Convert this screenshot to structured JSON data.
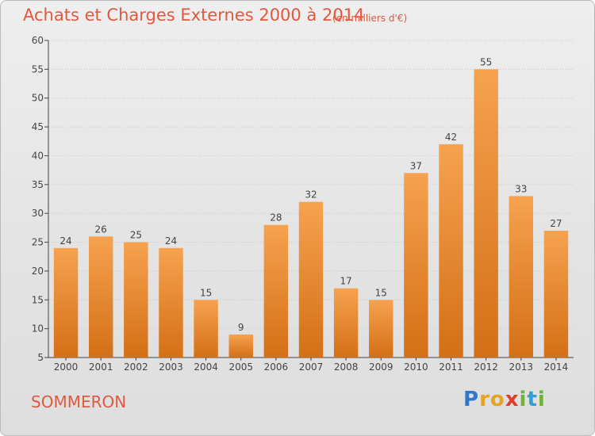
{
  "header": {
    "title": "Achats et Charges Externes 2000 à 2014",
    "subtitle": "(en milliers d'€)"
  },
  "footer": {
    "commune": "SOMMERON",
    "logo_letters": [
      "P",
      "r",
      "o",
      "x",
      "i",
      "t",
      "i"
    ]
  },
  "colors": {
    "title": "#e0593f",
    "bar_top": "#f6a24f",
    "bar_bottom": "#d46f16",
    "axis": "#444444",
    "grid": "#c8c8c8",
    "background": "#e6e6e6"
  },
  "chart_data": {
    "type": "bar",
    "title": "Achats et Charges Externes 2000 à 2014",
    "subtitle": "(en milliers d'€)",
    "categories": [
      "2000",
      "2001",
      "2002",
      "2003",
      "2004",
      "2005",
      "2006",
      "2007",
      "2008",
      "2009",
      "2010",
      "2011",
      "2012",
      "2013",
      "2014"
    ],
    "values": [
      24,
      26,
      25,
      24,
      15,
      9,
      28,
      32,
      17,
      15,
      37,
      42,
      55,
      33,
      27
    ],
    "ylim": [
      5,
      60
    ],
    "yticks": [
      5,
      10,
      15,
      20,
      25,
      30,
      35,
      40,
      45,
      50,
      55,
      60
    ],
    "grid": true,
    "xlabel": "",
    "ylabel": ""
  }
}
